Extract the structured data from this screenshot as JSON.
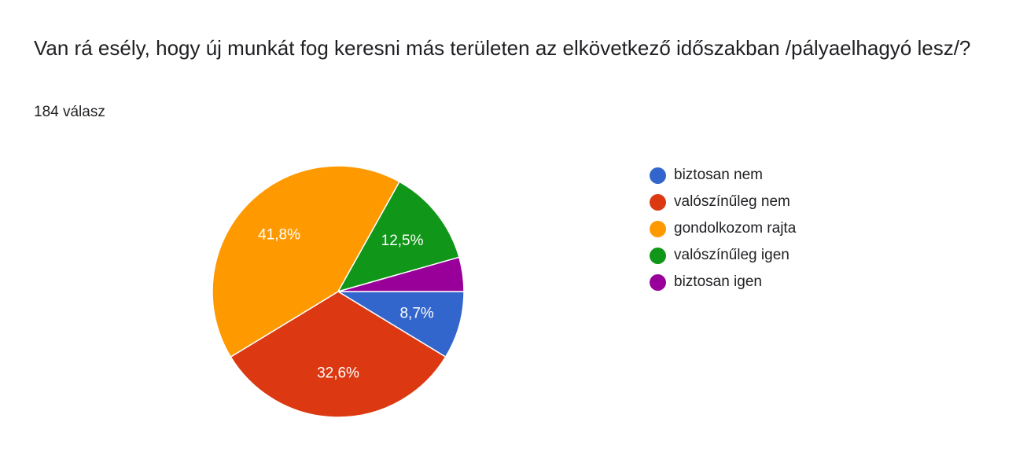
{
  "question": {
    "title": "Van rá esély, hogy új munkát fog keresni más területen az elkövetkező időszakban /pályaelhagyó lesz/?",
    "response_count": "184 válasz"
  },
  "chart_data": {
    "type": "pie",
    "total_responses": 184,
    "legend_position": "right",
    "slices": [
      {
        "label": "biztosan nem",
        "value": 8.7,
        "display_label": "8,7%",
        "color": "#3366cc"
      },
      {
        "label": "valószínűleg nem",
        "value": 32.6,
        "display_label": "32,6%",
        "color": "#dc3912"
      },
      {
        "label": "gondolkozom rajta",
        "value": 41.8,
        "display_label": "41,8%",
        "color": "#ff9900"
      },
      {
        "label": "valószínűleg igen",
        "value": 12.5,
        "display_label": "12,5%",
        "color": "#109618"
      },
      {
        "label": "biztosan igen",
        "value": 4.4,
        "display_label": "",
        "color": "#990099"
      }
    ]
  }
}
